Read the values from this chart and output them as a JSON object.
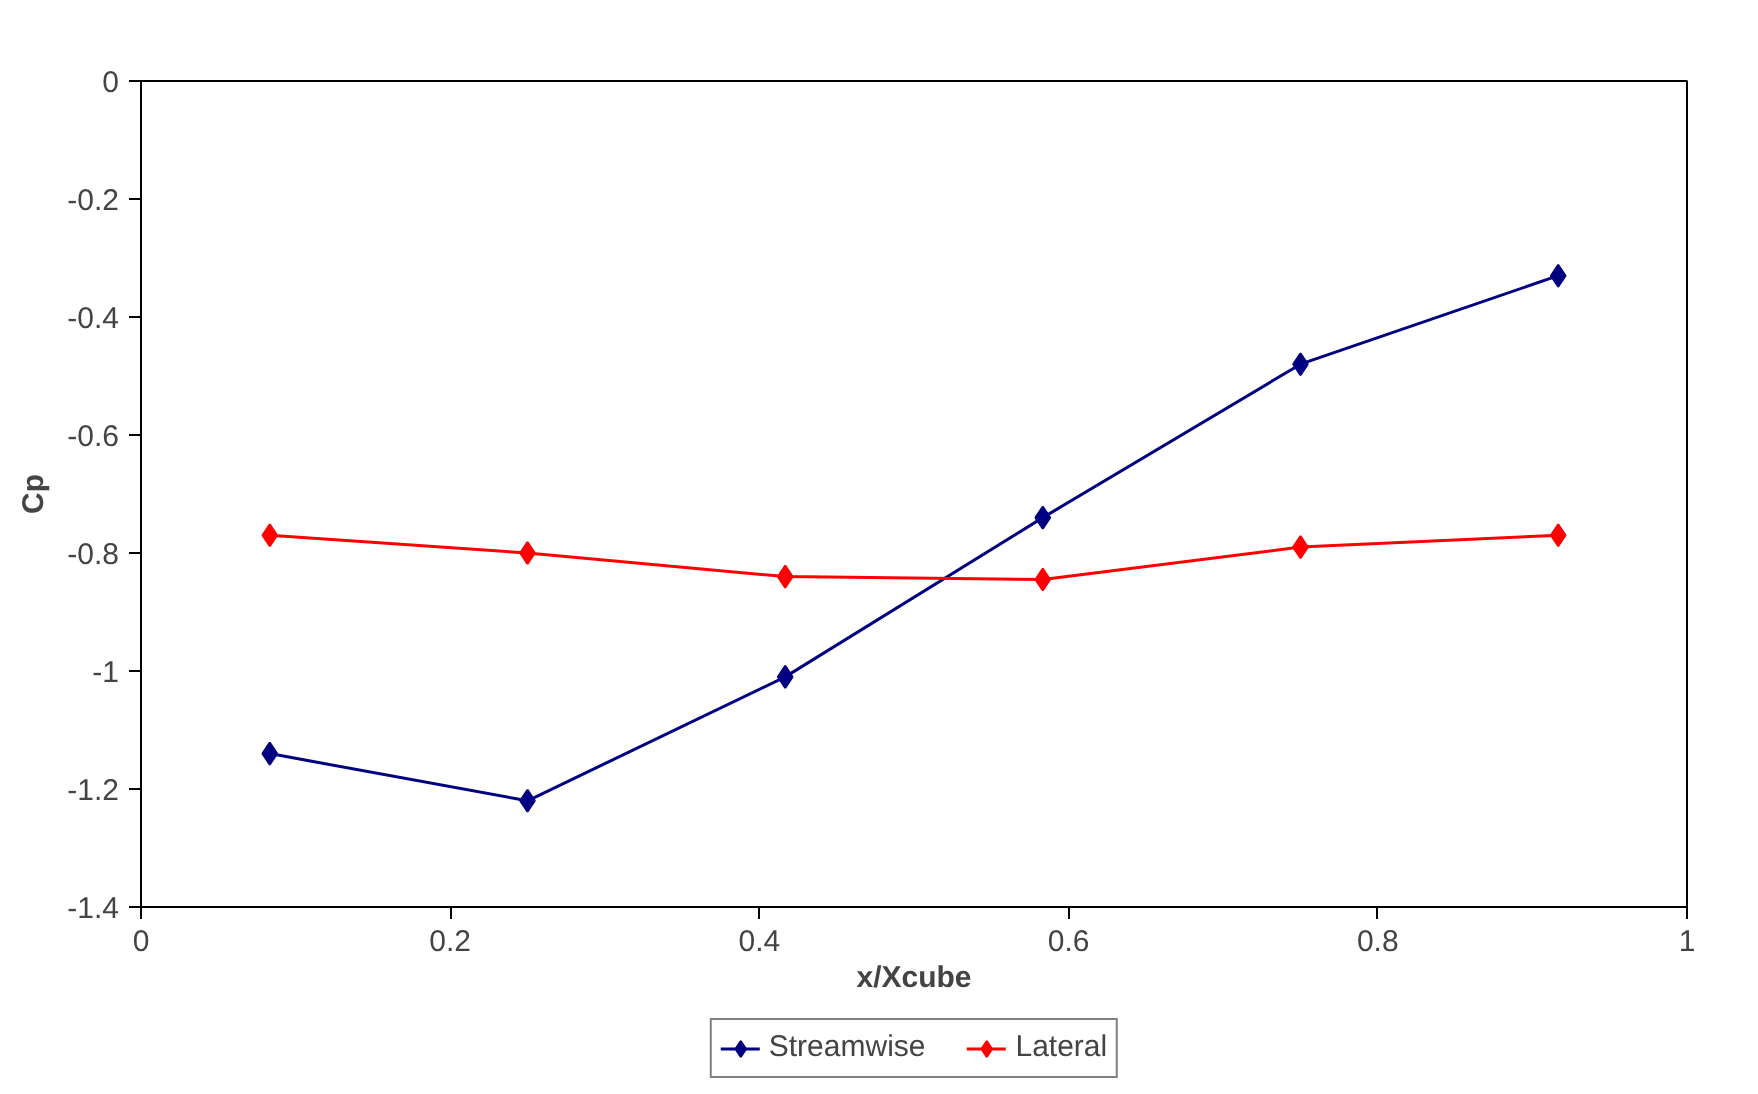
{
  "chart_data": {
    "type": "line",
    "xlabel": "x/Xcube",
    "ylabel": "Cp",
    "x": [
      0.0833,
      0.25,
      0.4167,
      0.5833,
      0.75,
      0.9167
    ],
    "series": [
      {
        "name": "Streamwise",
        "color": "#000080",
        "values": [
          -1.14,
          -1.22,
          -1.01,
          -0.74,
          -0.48,
          -0.33
        ]
      },
      {
        "name": "Lateral",
        "color": "#ff0000",
        "values": [
          -0.77,
          -0.8,
          -0.84,
          -0.845,
          -0.79,
          -0.77
        ]
      }
    ],
    "xlim": [
      0,
      1
    ],
    "xticks": [
      0,
      0.2,
      0.4,
      0.6,
      0.8,
      1
    ],
    "ylim": [
      -1.4,
      0
    ],
    "yticks": [
      0,
      -0.2,
      -0.4,
      -0.6,
      -0.8,
      -1,
      -1.2,
      -1.4
    ],
    "grid": false,
    "legend": "bottom",
    "marker": "diamond",
    "line_style": "solid"
  }
}
